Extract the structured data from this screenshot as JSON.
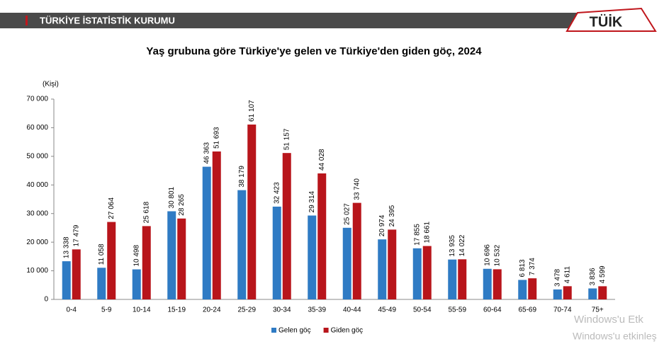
{
  "header": {
    "org": "TÜRKİYE İSTATİSTİK KURUMU",
    "logo": "TÜİK"
  },
  "watermark": [
    "Windows'u Etk",
    "Windows'u etkinleş"
  ],
  "chart_data": {
    "type": "bar",
    "title": "Yaş grubuna göre Türkiye'ye gelen ve Türkiye'den giden göç, 2024",
    "y_label": "(Kişi)",
    "categories": [
      "0-4",
      "5-9",
      "10-14",
      "15-19",
      "20-24",
      "25-29",
      "30-34",
      "35-39",
      "40-44",
      "45-49",
      "50-54",
      "55-59",
      "60-64",
      "65-69",
      "70-74",
      "75+"
    ],
    "series": [
      {
        "name": "Gelen göç",
        "color": "#2f7bc4",
        "values": [
          13338,
          11058,
          10498,
          30801,
          46363,
          38179,
          32423,
          29314,
          25027,
          20974,
          17855,
          13935,
          10696,
          6813,
          3478,
          3836
        ],
        "value_labels": [
          "13 338",
          "11 058",
          "10 498",
          "30 801",
          "46 363",
          "38 179",
          "32 423",
          "29 314",
          "25 027",
          "20 974",
          "17 855",
          "13 935",
          "10 696",
          "6 813",
          "3 478",
          "3 836"
        ]
      },
      {
        "name": "Giden göç",
        "color": "#b8151b",
        "values": [
          17479,
          27064,
          25618,
          28265,
          51693,
          61107,
          51157,
          44028,
          33740,
          24395,
          18661,
          14022,
          10532,
          7374,
          4611,
          4599
        ],
        "value_labels": [
          "17 479",
          "27 064",
          "25 618",
          "28 265",
          "51 693",
          "61 107",
          "51 157",
          "44 028",
          "33 740",
          "24 395",
          "18 661",
          "14 022",
          "10 532",
          "7 374",
          "4 611",
          "4 599"
        ]
      }
    ],
    "ylim": [
      0,
      70000
    ],
    "yticks": [
      0,
      {
        "value": 10000,
        "label": "10 000"
      },
      {
        "value": 20000,
        "label": "20 000"
      },
      {
        "value": 30000,
        "label": "30 000"
      },
      {
        "value": 40000,
        "label": "40 000"
      },
      {
        "value": 50000,
        "label": "50 000"
      },
      {
        "value": 60000,
        "label": "60 000"
      },
      {
        "value": 70000,
        "label": "70 000"
      }
    ]
  }
}
